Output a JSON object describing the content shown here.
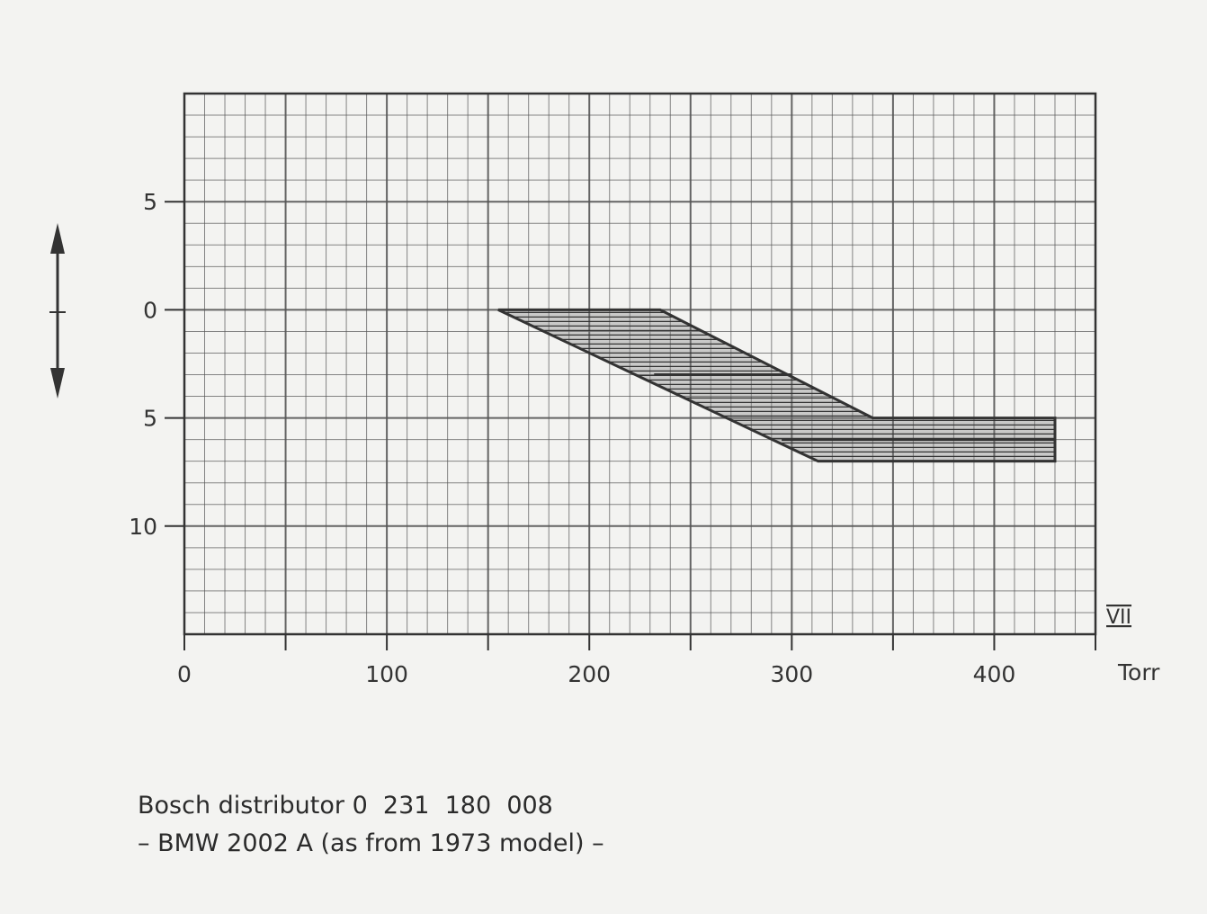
{
  "chart_data": {
    "type": "area",
    "title": "",
    "xlabel": "Torr",
    "ylabel": "",
    "xlim": [
      0,
      450
    ],
    "ylim": [
      -10,
      15
    ],
    "y_inverted": true,
    "grid": true,
    "x_ticks": [
      0,
      100,
      200,
      300,
      400
    ],
    "x_tick_labels": [
      "0",
      "100",
      "200",
      "300",
      "400"
    ],
    "y_ticks": [
      -5,
      0,
      5,
      10
    ],
    "y_tick_labels": [
      "5",
      "0",
      "5",
      "10"
    ],
    "axis_unit_label": "Torr",
    "figure_number": "VII",
    "series": [
      {
        "values": [
          [
            155,
            0
          ],
          [
            235,
            0
          ],
          [
            340,
            5
          ],
          [
            430,
            5
          ],
          [
            430,
            7
          ],
          [
            313,
            7
          ],
          [
            155,
            0
          ]
        ]
      }
    ],
    "inner_lines": [
      [
        [
          232,
          3
        ],
        [
          300,
          3
        ]
      ],
      [
        [
          295,
          6
        ],
        [
          430,
          6
        ]
      ]
    ]
  },
  "caption": {
    "line1": "Bosch distributor 0  231  180  008",
    "line2": "– BMW 2002 A (as from 1973 model) –"
  },
  "colors": {
    "ink": "#333333",
    "grid": "#555555",
    "background": "#f3f3f1"
  }
}
